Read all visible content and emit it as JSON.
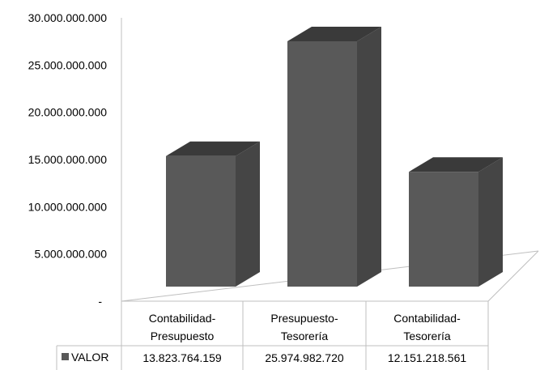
{
  "chart_data": {
    "type": "bar",
    "title": "",
    "xlabel": "",
    "ylabel": "",
    "ylim": [
      0,
      30000000000
    ],
    "y_ticks": [
      "-",
      "5.000.000.000",
      "10.000.000.000",
      "15.000.000.000",
      "20.000.000.000",
      "25.000.000.000",
      "30.000.000.000"
    ],
    "categories": [
      [
        "Contabilidad-",
        "Presupuesto"
      ],
      [
        "Presupuesto-",
        "Tesorería"
      ],
      [
        "Contabilidad-",
        "Tesorería"
      ]
    ],
    "series": [
      {
        "name": "VALOR",
        "values": [
          13823764159,
          25974982720,
          12151218561
        ],
        "labels": [
          "13.823.764.159",
          "25.974.982.720",
          "12.151.218.561"
        ]
      }
    ],
    "style": "3d-column",
    "legend": "data-table",
    "grid": false,
    "colors": {
      "front": "#595959",
      "top": "#3a3a3a",
      "side": "#454545",
      "axis": "#bfbfbf"
    }
  }
}
